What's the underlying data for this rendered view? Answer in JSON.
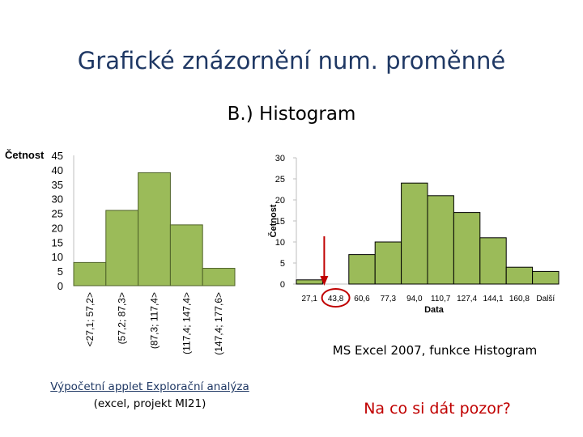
{
  "slide": {
    "title": "Grafické znázornění num. proměnné",
    "subtitle": "B.) Histogram",
    "excel_caption": "MS Excel 2007, funkce Histogram",
    "applet_link": "Výpočetní applet Explorační analýza",
    "applet_note": "(excel, projekt MI21)",
    "warning": "Na co si dát pozor?"
  },
  "colors": {
    "title": "#1f3864",
    "bar_fill": "#9bbb59",
    "bar_stroke": "#4f6228",
    "arrow": "#c00000",
    "highlight": "#c00000",
    "warning": "#c00000"
  },
  "chart_data": [
    {
      "type": "bar",
      "ylabel": "Četnost",
      "ylim": [
        0,
        45
      ],
      "yticks": [
        0,
        5,
        10,
        15,
        20,
        25,
        30,
        35,
        40,
        45
      ],
      "categories": [
        "<27,1; 57,2>",
        "(57,2; 87,3>",
        "(87,3; 117,4>",
        "(117,4; 147,4>",
        "(147,4; 177,6>"
      ],
      "values": [
        8,
        26,
        39,
        21,
        6
      ],
      "grid": false
    },
    {
      "type": "bar",
      "ylabel": "Četnost",
      "xlabel": "Data",
      "ylim": [
        0,
        30
      ],
      "yticks": [
        0,
        5,
        10,
        15,
        20,
        25,
        30
      ],
      "categories": [
        "27,1",
        "43,8",
        "60,6",
        "77,3",
        "94,0",
        "110,7",
        "127,4",
        "144,1",
        "160,8",
        "Další"
      ],
      "values": [
        1,
        0,
        7,
        10,
        24,
        21,
        17,
        11,
        4,
        3
      ],
      "highlighted_category": "43,8",
      "grid": false
    }
  ]
}
